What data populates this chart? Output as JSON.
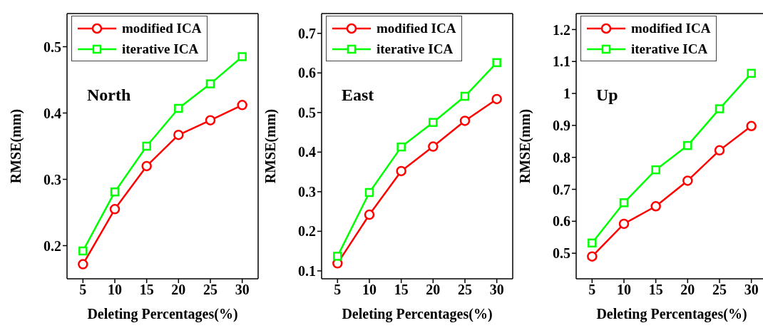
{
  "chart_data": [
    {
      "type": "line",
      "ylabel": "RMSE(mm)",
      "xlabel": "Deleting Percentages(%)",
      "annotations": [
        "North"
      ],
      "legend": "top left",
      "xlim": [
        2.5,
        32.5
      ],
      "xticks": [
        5,
        10,
        15,
        20,
        25,
        30
      ],
      "ylim": [
        0.15,
        0.55
      ],
      "yticks": [
        0.2,
        0.3,
        0.4,
        0.5
      ],
      "x": [
        5,
        10,
        15,
        20,
        25,
        30
      ],
      "series": [
        {
          "name": "modified ICA",
          "color": "#ff0000",
          "marker": "circle",
          "values": [
            0.172,
            0.255,
            0.32,
            0.367,
            0.389,
            0.412
          ]
        },
        {
          "name": "iterative ICA",
          "color": "#00ff00",
          "marker": "square",
          "values": [
            0.192,
            0.281,
            0.35,
            0.407,
            0.444,
            0.485
          ]
        }
      ]
    },
    {
      "type": "line",
      "ylabel": "RMSE(mm)",
      "xlabel": "Deleting Percentages(%)",
      "annotations": [
        "East"
      ],
      "legend": "top left",
      "xlim": [
        2.5,
        32.5
      ],
      "xticks": [
        5,
        10,
        15,
        20,
        25,
        30
      ],
      "ylim": [
        0.08,
        0.75
      ],
      "yticks": [
        0.1,
        0.2,
        0.3,
        0.4,
        0.5,
        0.6,
        0.7
      ],
      "x": [
        5,
        10,
        15,
        20,
        25,
        30
      ],
      "series": [
        {
          "name": "modified ICA",
          "color": "#ff0000",
          "marker": "circle",
          "values": [
            0.119,
            0.242,
            0.352,
            0.414,
            0.479,
            0.534
          ]
        },
        {
          "name": "iterative ICA",
          "color": "#00ff00",
          "marker": "square",
          "values": [
            0.137,
            0.298,
            0.413,
            0.475,
            0.541,
            0.626
          ]
        }
      ]
    },
    {
      "type": "line",
      "ylabel": "RMSE(mm)",
      "xlabel": "Deleting Percentages(%)",
      "annotations": [
        "Up"
      ],
      "legend": "top left",
      "xlim": [
        2.5,
        32.5
      ],
      "xticks": [
        5,
        10,
        15,
        20,
        25,
        30
      ],
      "ylim": [
        0.42,
        1.25
      ],
      "yticks": [
        0.5,
        0.6,
        0.7,
        0.8,
        0.9,
        1,
        1.1,
        1.2
      ],
      "x": [
        5,
        10,
        15,
        20,
        25,
        30
      ],
      "series": [
        {
          "name": "modified ICA",
          "color": "#ff0000",
          "marker": "circle",
          "values": [
            0.49,
            0.592,
            0.647,
            0.727,
            0.822,
            0.898
          ]
        },
        {
          "name": "iterative ICA",
          "color": "#00ff00",
          "marker": "square",
          "values": [
            0.532,
            0.658,
            0.761,
            0.837,
            0.952,
            1.063
          ]
        }
      ]
    }
  ]
}
